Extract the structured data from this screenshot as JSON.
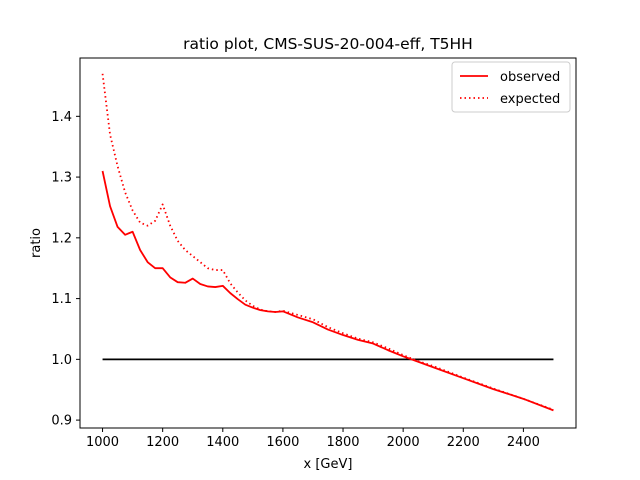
{
  "chart_data": {
    "type": "line",
    "title": "ratio plot, CMS-SUS-20-004-eff, T5HH",
    "xlabel": "x [GeV]",
    "ylabel": "ratio",
    "xlim": [
      925,
      2575
    ],
    "ylim": [
      0.887,
      1.496
    ],
    "xticks": [
      1000,
      1200,
      1400,
      1600,
      1800,
      2000,
      2200,
      2400
    ],
    "yticks": [
      0.9,
      1.0,
      1.1,
      1.2,
      1.3,
      1.4
    ],
    "ytick_labels": [
      "0.9",
      "1.0",
      "1.1",
      "1.2",
      "1.3",
      "1.4"
    ],
    "grid": false,
    "legend_position": "top-right",
    "series": [
      {
        "name": "observed",
        "color": "#ff0000",
        "style": "solid",
        "x": [
          1000,
          1025,
          1050,
          1075,
          1100,
          1125,
          1150,
          1175,
          1200,
          1225,
          1250,
          1275,
          1300,
          1325,
          1350,
          1375,
          1400,
          1425,
          1450,
          1475,
          1500,
          1525,
          1550,
          1575,
          1600,
          1650,
          1700,
          1750,
          1800,
          1850,
          1900,
          1950,
          2000,
          2050,
          2100,
          2200,
          2300,
          2400,
          2500
        ],
        "y": [
          1.31,
          1.252,
          1.218,
          1.205,
          1.21,
          1.18,
          1.16,
          1.15,
          1.15,
          1.135,
          1.127,
          1.126,
          1.133,
          1.124,
          1.12,
          1.119,
          1.121,
          1.109,
          1.099,
          1.09,
          1.085,
          1.081,
          1.079,
          1.078,
          1.079,
          1.069,
          1.061,
          1.049,
          1.04,
          1.032,
          1.026,
          1.015,
          1.005,
          0.996,
          0.987,
          0.969,
          0.951,
          0.935,
          0.916
        ]
      },
      {
        "name": "expected",
        "color": "#ff0000",
        "style": "dotted",
        "x": [
          1000,
          1025,
          1050,
          1075,
          1100,
          1125,
          1150,
          1175,
          1200,
          1225,
          1250,
          1275,
          1300,
          1325,
          1350,
          1375,
          1400,
          1425,
          1450,
          1475,
          1500,
          1525,
          1550,
          1575,
          1600,
          1650,
          1700,
          1750,
          1800,
          1850,
          1900,
          1950,
          2000,
          2050,
          2100,
          2200,
          2300,
          2400,
          2500
        ],
        "y": [
          1.47,
          1.37,
          1.318,
          1.275,
          1.245,
          1.225,
          1.22,
          1.228,
          1.255,
          1.22,
          1.195,
          1.18,
          1.17,
          1.16,
          1.15,
          1.147,
          1.147,
          1.125,
          1.11,
          1.097,
          1.088,
          1.082,
          1.079,
          1.078,
          1.08,
          1.073,
          1.066,
          1.053,
          1.043,
          1.034,
          1.028,
          1.018,
          1.007,
          0.997,
          0.989,
          0.97,
          0.952,
          0.935,
          0.917
        ]
      },
      {
        "name": "",
        "color": "#000000",
        "style": "solid",
        "x": [
          1000,
          2500
        ],
        "y": [
          1.0,
          1.0
        ]
      }
    ]
  }
}
